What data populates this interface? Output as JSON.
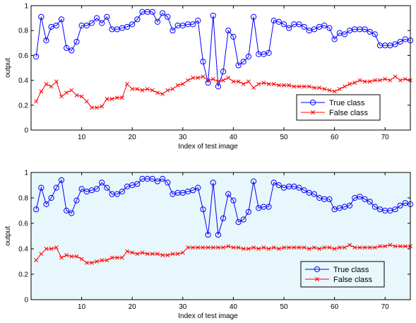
{
  "chart_data": [
    {
      "type": "line",
      "xlabel": "Index of test image",
      "ylabel": "output",
      "xlim": [
        0,
        75
      ],
      "ylim": [
        0,
        1
      ],
      "xticks": [
        "10",
        "20",
        "30",
        "40",
        "50",
        "60",
        "70"
      ],
      "yticks": [
        "0",
        "0.2",
        "0.4",
        "0.6",
        "0.8",
        "1"
      ],
      "legend": "lower-right",
      "background": "#ffffff",
      "series": [
        {
          "name": "True class",
          "color": "#0000ff",
          "marker": "circle",
          "x": [
            1,
            2,
            3,
            4,
            5,
            6,
            7,
            8,
            9,
            10,
            11,
            12,
            13,
            14,
            15,
            16,
            17,
            18,
            19,
            20,
            21,
            22,
            23,
            24,
            25,
            26,
            27,
            28,
            29,
            30,
            31,
            32,
            33,
            34,
            35,
            36,
            37,
            38,
            39,
            40,
            41,
            42,
            43,
            44,
            45,
            46,
            47,
            48,
            49,
            50,
            51,
            52,
            53,
            54,
            55,
            56,
            57,
            58,
            59,
            60,
            61,
            62,
            63,
            64,
            65,
            66,
            67,
            68,
            69,
            70,
            71,
            72,
            73,
            74,
            75
          ],
          "values": [
            0.59,
            0.91,
            0.72,
            0.83,
            0.84,
            0.89,
            0.66,
            0.64,
            0.71,
            0.84,
            0.84,
            0.86,
            0.9,
            0.86,
            0.91,
            0.81,
            0.81,
            0.82,
            0.83,
            0.85,
            0.89,
            0.95,
            0.95,
            0.95,
            0.87,
            0.94,
            0.91,
            0.8,
            0.84,
            0.84,
            0.85,
            0.85,
            0.88,
            0.55,
            0.38,
            0.92,
            0.35,
            0.47,
            0.8,
            0.75,
            0.52,
            0.55,
            0.59,
            0.91,
            0.61,
            0.61,
            0.62,
            0.88,
            0.87,
            0.85,
            0.82,
            0.85,
            0.85,
            0.83,
            0.8,
            0.81,
            0.83,
            0.84,
            0.82,
            0.73,
            0.78,
            0.77,
            0.8,
            0.81,
            0.81,
            0.81,
            0.79,
            0.77,
            0.68,
            0.68,
            0.68,
            0.69,
            0.71,
            0.73,
            0.72
          ]
        },
        {
          "name": "False class",
          "color": "#ff0000",
          "marker": "x",
          "x": [
            1,
            2,
            3,
            4,
            5,
            6,
            7,
            8,
            9,
            10,
            11,
            12,
            13,
            14,
            15,
            16,
            17,
            18,
            19,
            20,
            21,
            22,
            23,
            24,
            25,
            26,
            27,
            28,
            29,
            30,
            31,
            32,
            33,
            34,
            35,
            36,
            37,
            38,
            39,
            40,
            41,
            42,
            43,
            44,
            45,
            46,
            47,
            48,
            49,
            50,
            51,
            52,
            53,
            54,
            55,
            56,
            57,
            58,
            59,
            60,
            61,
            62,
            63,
            64,
            65,
            66,
            67,
            68,
            69,
            70,
            71,
            72,
            73,
            74,
            75
          ],
          "values": [
            0.23,
            0.31,
            0.37,
            0.35,
            0.39,
            0.27,
            0.3,
            0.32,
            0.28,
            0.27,
            0.23,
            0.18,
            0.18,
            0.19,
            0.25,
            0.25,
            0.26,
            0.26,
            0.37,
            0.33,
            0.33,
            0.32,
            0.33,
            0.32,
            0.3,
            0.29,
            0.32,
            0.33,
            0.36,
            0.37,
            0.4,
            0.42,
            0.42,
            0.43,
            0.4,
            0.41,
            0.39,
            0.4,
            0.42,
            0.39,
            0.39,
            0.37,
            0.39,
            0.34,
            0.37,
            0.38,
            0.37,
            0.37,
            0.36,
            0.36,
            0.36,
            0.35,
            0.35,
            0.35,
            0.35,
            0.34,
            0.34,
            0.33,
            0.32,
            0.31,
            0.33,
            0.35,
            0.37,
            0.38,
            0.4,
            0.39,
            0.39,
            0.4,
            0.4,
            0.41,
            0.4,
            0.43,
            0.4,
            0.41,
            0.4
          ]
        }
      ]
    },
    {
      "type": "line",
      "xlabel": "Index of test image",
      "ylabel": "output",
      "xlim": [
        0,
        75
      ],
      "ylim": [
        0,
        1
      ],
      "xticks": [
        "10",
        "20",
        "30",
        "40",
        "50",
        "60",
        "70"
      ],
      "yticks": [
        "0",
        "0.2",
        "0.4",
        "0.6",
        "0.8",
        "1"
      ],
      "legend": "lower-right",
      "background": "#e8f7fb",
      "series": [
        {
          "name": "True class",
          "color": "#0000ff",
          "marker": "circle",
          "x": [
            1,
            2,
            3,
            4,
            5,
            6,
            7,
            8,
            9,
            10,
            11,
            12,
            13,
            14,
            15,
            16,
            17,
            18,
            19,
            20,
            21,
            22,
            23,
            24,
            25,
            26,
            27,
            28,
            29,
            30,
            31,
            32,
            33,
            34,
            35,
            36,
            37,
            38,
            39,
            40,
            41,
            42,
            43,
            44,
            45,
            46,
            47,
            48,
            49,
            50,
            51,
            52,
            53,
            54,
            55,
            56,
            57,
            58,
            59,
            60,
            61,
            62,
            63,
            64,
            65,
            66,
            67,
            68,
            69,
            70,
            71,
            72,
            73,
            74,
            75
          ],
          "values": [
            0.71,
            0.88,
            0.75,
            0.8,
            0.88,
            0.94,
            0.7,
            0.68,
            0.78,
            0.87,
            0.85,
            0.86,
            0.87,
            0.92,
            0.88,
            0.83,
            0.83,
            0.85,
            0.89,
            0.9,
            0.91,
            0.95,
            0.95,
            0.95,
            0.93,
            0.95,
            0.92,
            0.83,
            0.84,
            0.84,
            0.85,
            0.86,
            0.88,
            0.71,
            0.51,
            0.92,
            0.51,
            0.64,
            0.83,
            0.78,
            0.61,
            0.63,
            0.69,
            0.93,
            0.72,
            0.73,
            0.73,
            0.92,
            0.9,
            0.88,
            0.89,
            0.89,
            0.88,
            0.86,
            0.84,
            0.83,
            0.8,
            0.79,
            0.79,
            0.71,
            0.72,
            0.73,
            0.74,
            0.8,
            0.81,
            0.79,
            0.77,
            0.73,
            0.71,
            0.7,
            0.7,
            0.71,
            0.74,
            0.76,
            0.75
          ]
        },
        {
          "name": "False class",
          "color": "#ff0000",
          "marker": "x",
          "x": [
            1,
            2,
            3,
            4,
            5,
            6,
            7,
            8,
            9,
            10,
            11,
            12,
            13,
            14,
            15,
            16,
            17,
            18,
            19,
            20,
            21,
            22,
            23,
            24,
            25,
            26,
            27,
            28,
            29,
            30,
            31,
            32,
            33,
            34,
            35,
            36,
            37,
            38,
            39,
            40,
            41,
            42,
            43,
            44,
            45,
            46,
            47,
            48,
            49,
            50,
            51,
            52,
            53,
            54,
            55,
            56,
            57,
            58,
            59,
            60,
            61,
            62,
            63,
            64,
            65,
            66,
            67,
            68,
            69,
            70,
            71,
            72,
            73,
            74,
            75
          ],
          "values": [
            0.31,
            0.36,
            0.4,
            0.4,
            0.41,
            0.33,
            0.35,
            0.34,
            0.34,
            0.32,
            0.29,
            0.29,
            0.3,
            0.31,
            0.31,
            0.33,
            0.33,
            0.33,
            0.38,
            0.37,
            0.36,
            0.37,
            0.36,
            0.36,
            0.36,
            0.35,
            0.35,
            0.36,
            0.36,
            0.37,
            0.41,
            0.41,
            0.41,
            0.41,
            0.41,
            0.41,
            0.41,
            0.41,
            0.42,
            0.41,
            0.41,
            0.4,
            0.4,
            0.41,
            0.4,
            0.41,
            0.4,
            0.41,
            0.4,
            0.41,
            0.41,
            0.41,
            0.41,
            0.41,
            0.4,
            0.41,
            0.4,
            0.41,
            0.41,
            0.4,
            0.41,
            0.41,
            0.43,
            0.41,
            0.41,
            0.41,
            0.41,
            0.41,
            0.42,
            0.42,
            0.43,
            0.42,
            0.42,
            0.42,
            0.42
          ]
        }
      ]
    }
  ]
}
